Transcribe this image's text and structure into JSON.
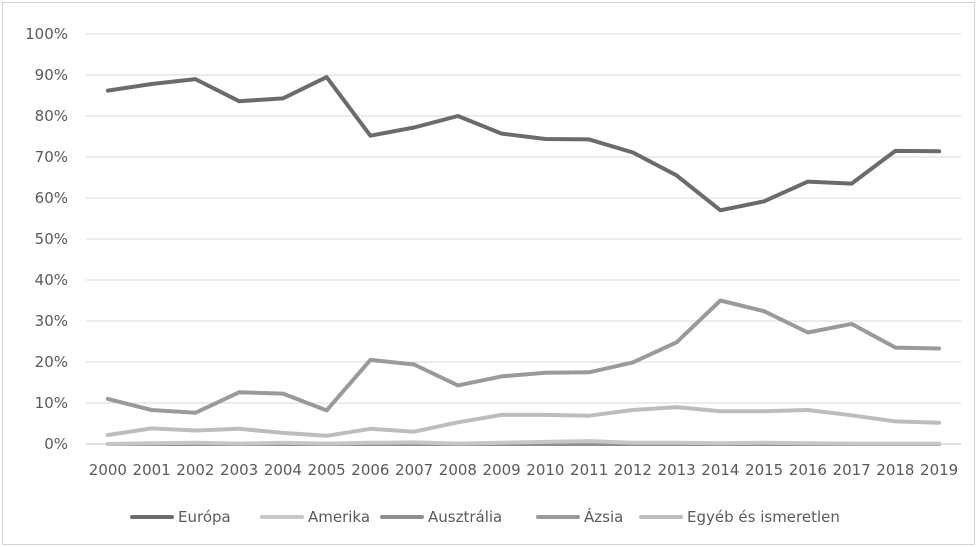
{
  "chart_data": {
    "type": "line",
    "title": "",
    "xlabel": "",
    "ylabel": "",
    "ylim": [
      0,
      1
    ],
    "y_ticks": [
      "0%",
      "10%",
      "20%",
      "30%",
      "40%",
      "50%",
      "60%",
      "70%",
      "80%",
      "90%",
      "100%"
    ],
    "grid": true,
    "legend_position": "bottom",
    "x": [
      "2000",
      "2001",
      "2002",
      "2003",
      "2004",
      "2005",
      "2006",
      "2007",
      "2008",
      "2009",
      "2010",
      "2011",
      "2012",
      "2013",
      "2014",
      "2015",
      "2016",
      "2017",
      "2018",
      "2019"
    ],
    "series": [
      {
        "name": "Európa",
        "color": "#6b6b6b",
        "values": [
          0.862,
          0.878,
          0.89,
          0.836,
          0.843,
          0.895,
          0.752,
          0.772,
          0.8,
          0.757,
          0.744,
          0.743,
          0.711,
          0.655,
          0.57,
          0.592,
          0.64,
          0.635,
          0.715,
          0.714
        ]
      },
      {
        "name": "Amerika",
        "color": "#c6c6c6",
        "values": [
          0.0,
          0.002,
          0.003,
          0.001,
          0.003,
          0.001,
          0.003,
          0.004,
          0.001,
          0.003,
          0.005,
          0.007,
          0.003,
          0.003,
          0.002,
          0.003,
          0.002,
          0.001,
          0.001,
          0.001
        ]
      },
      {
        "name": "Ausztrália",
        "color": "#8f8f8f",
        "values": [
          0.0,
          0.0,
          0.0,
          0.0,
          0.0,
          0.0,
          0.0,
          0.0,
          0.0,
          0.0,
          0.0,
          0.0,
          0.0,
          0.0,
          0.0,
          0.0,
          0.0,
          0.0,
          0.0,
          0.0
        ]
      },
      {
        "name": "Ázsia",
        "color": "#9a9a9a",
        "values": [
          0.11,
          0.083,
          0.076,
          0.126,
          0.123,
          0.082,
          0.205,
          0.194,
          0.143,
          0.165,
          0.174,
          0.175,
          0.199,
          0.248,
          0.35,
          0.324,
          0.272,
          0.293,
          0.235,
          0.233
        ]
      },
      {
        "name": "Egyéb és ismeretlen",
        "color": "#bdbdbd",
        "values": [
          0.022,
          0.038,
          0.033,
          0.037,
          0.027,
          0.02,
          0.037,
          0.03,
          0.053,
          0.071,
          0.071,
          0.069,
          0.083,
          0.09,
          0.08,
          0.08,
          0.083,
          0.07,
          0.055,
          0.052
        ]
      }
    ]
  }
}
